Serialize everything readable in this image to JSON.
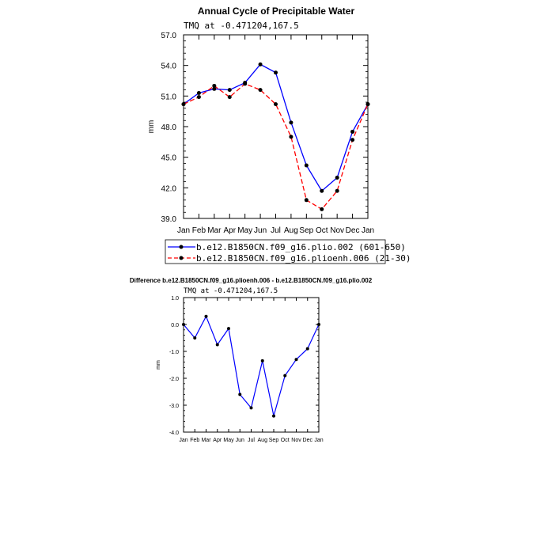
{
  "chart_data": [
    {
      "type": "line",
      "title": "Annual Cycle of Precipitable Water",
      "subtitle": "TMQ at -0.471204,167.5",
      "ylabel": "mm",
      "xlabel": "",
      "ylim": [
        39.0,
        57.0
      ],
      "yticks": [
        "39.0",
        "42.0",
        "45.0",
        "48.0",
        "51.0",
        "54.0",
        "57.0"
      ],
      "categories": [
        "Jan",
        "Feb",
        "Mar",
        "Apr",
        "May",
        "Jun",
        "Jul",
        "Aug",
        "Sep",
        "Oct",
        "Nov",
        "Dec",
        "Jan"
      ],
      "series": [
        {
          "name": "b.e12.B1850CN.f09_g16.plio.002 (601-650)",
          "color": "#0000ff",
          "dash": "solid",
          "values": [
            50.2,
            51.3,
            51.7,
            51.6,
            52.3,
            54.1,
            53.3,
            48.4,
            44.2,
            41.7,
            43.0,
            47.5,
            50.2
          ]
        },
        {
          "name": "b.e12.B1850CN.f09_g16.plioenh.006 (21-30)",
          "color": "#ff0000",
          "dash": "dashed",
          "values": [
            50.2,
            50.9,
            52.0,
            50.9,
            52.2,
            51.6,
            50.2,
            47.0,
            40.8,
            39.9,
            41.7,
            46.7,
            50.2
          ]
        }
      ]
    },
    {
      "type": "line",
      "title": "Difference b.e12.B1850CN.f09_g16.plioenh.006 - b.e12.B1850CN.f09_g16.plio.002",
      "subtitle": "TMQ at -0.471204,167.5",
      "ylabel": "mm",
      "xlabel": "",
      "ylim": [
        -4.0,
        1.0
      ],
      "yticks": [
        "-4.0",
        "-3.0",
        "-2.0",
        "-1.0",
        "0.0",
        "1.0"
      ],
      "categories": [
        "Jan",
        "Feb",
        "Mar",
        "Apr",
        "May",
        "Jun",
        "Jul",
        "Aug",
        "Sep",
        "Oct",
        "Nov",
        "Dec",
        "Jan"
      ],
      "series": [
        {
          "name": "Difference",
          "color": "#0000ff",
          "dash": "solid",
          "values": [
            0.0,
            -0.5,
            0.3,
            -0.75,
            -0.15,
            -2.6,
            -3.1,
            -1.35,
            -3.4,
            -1.9,
            -1.3,
            -0.9,
            0.0
          ]
        }
      ]
    }
  ]
}
